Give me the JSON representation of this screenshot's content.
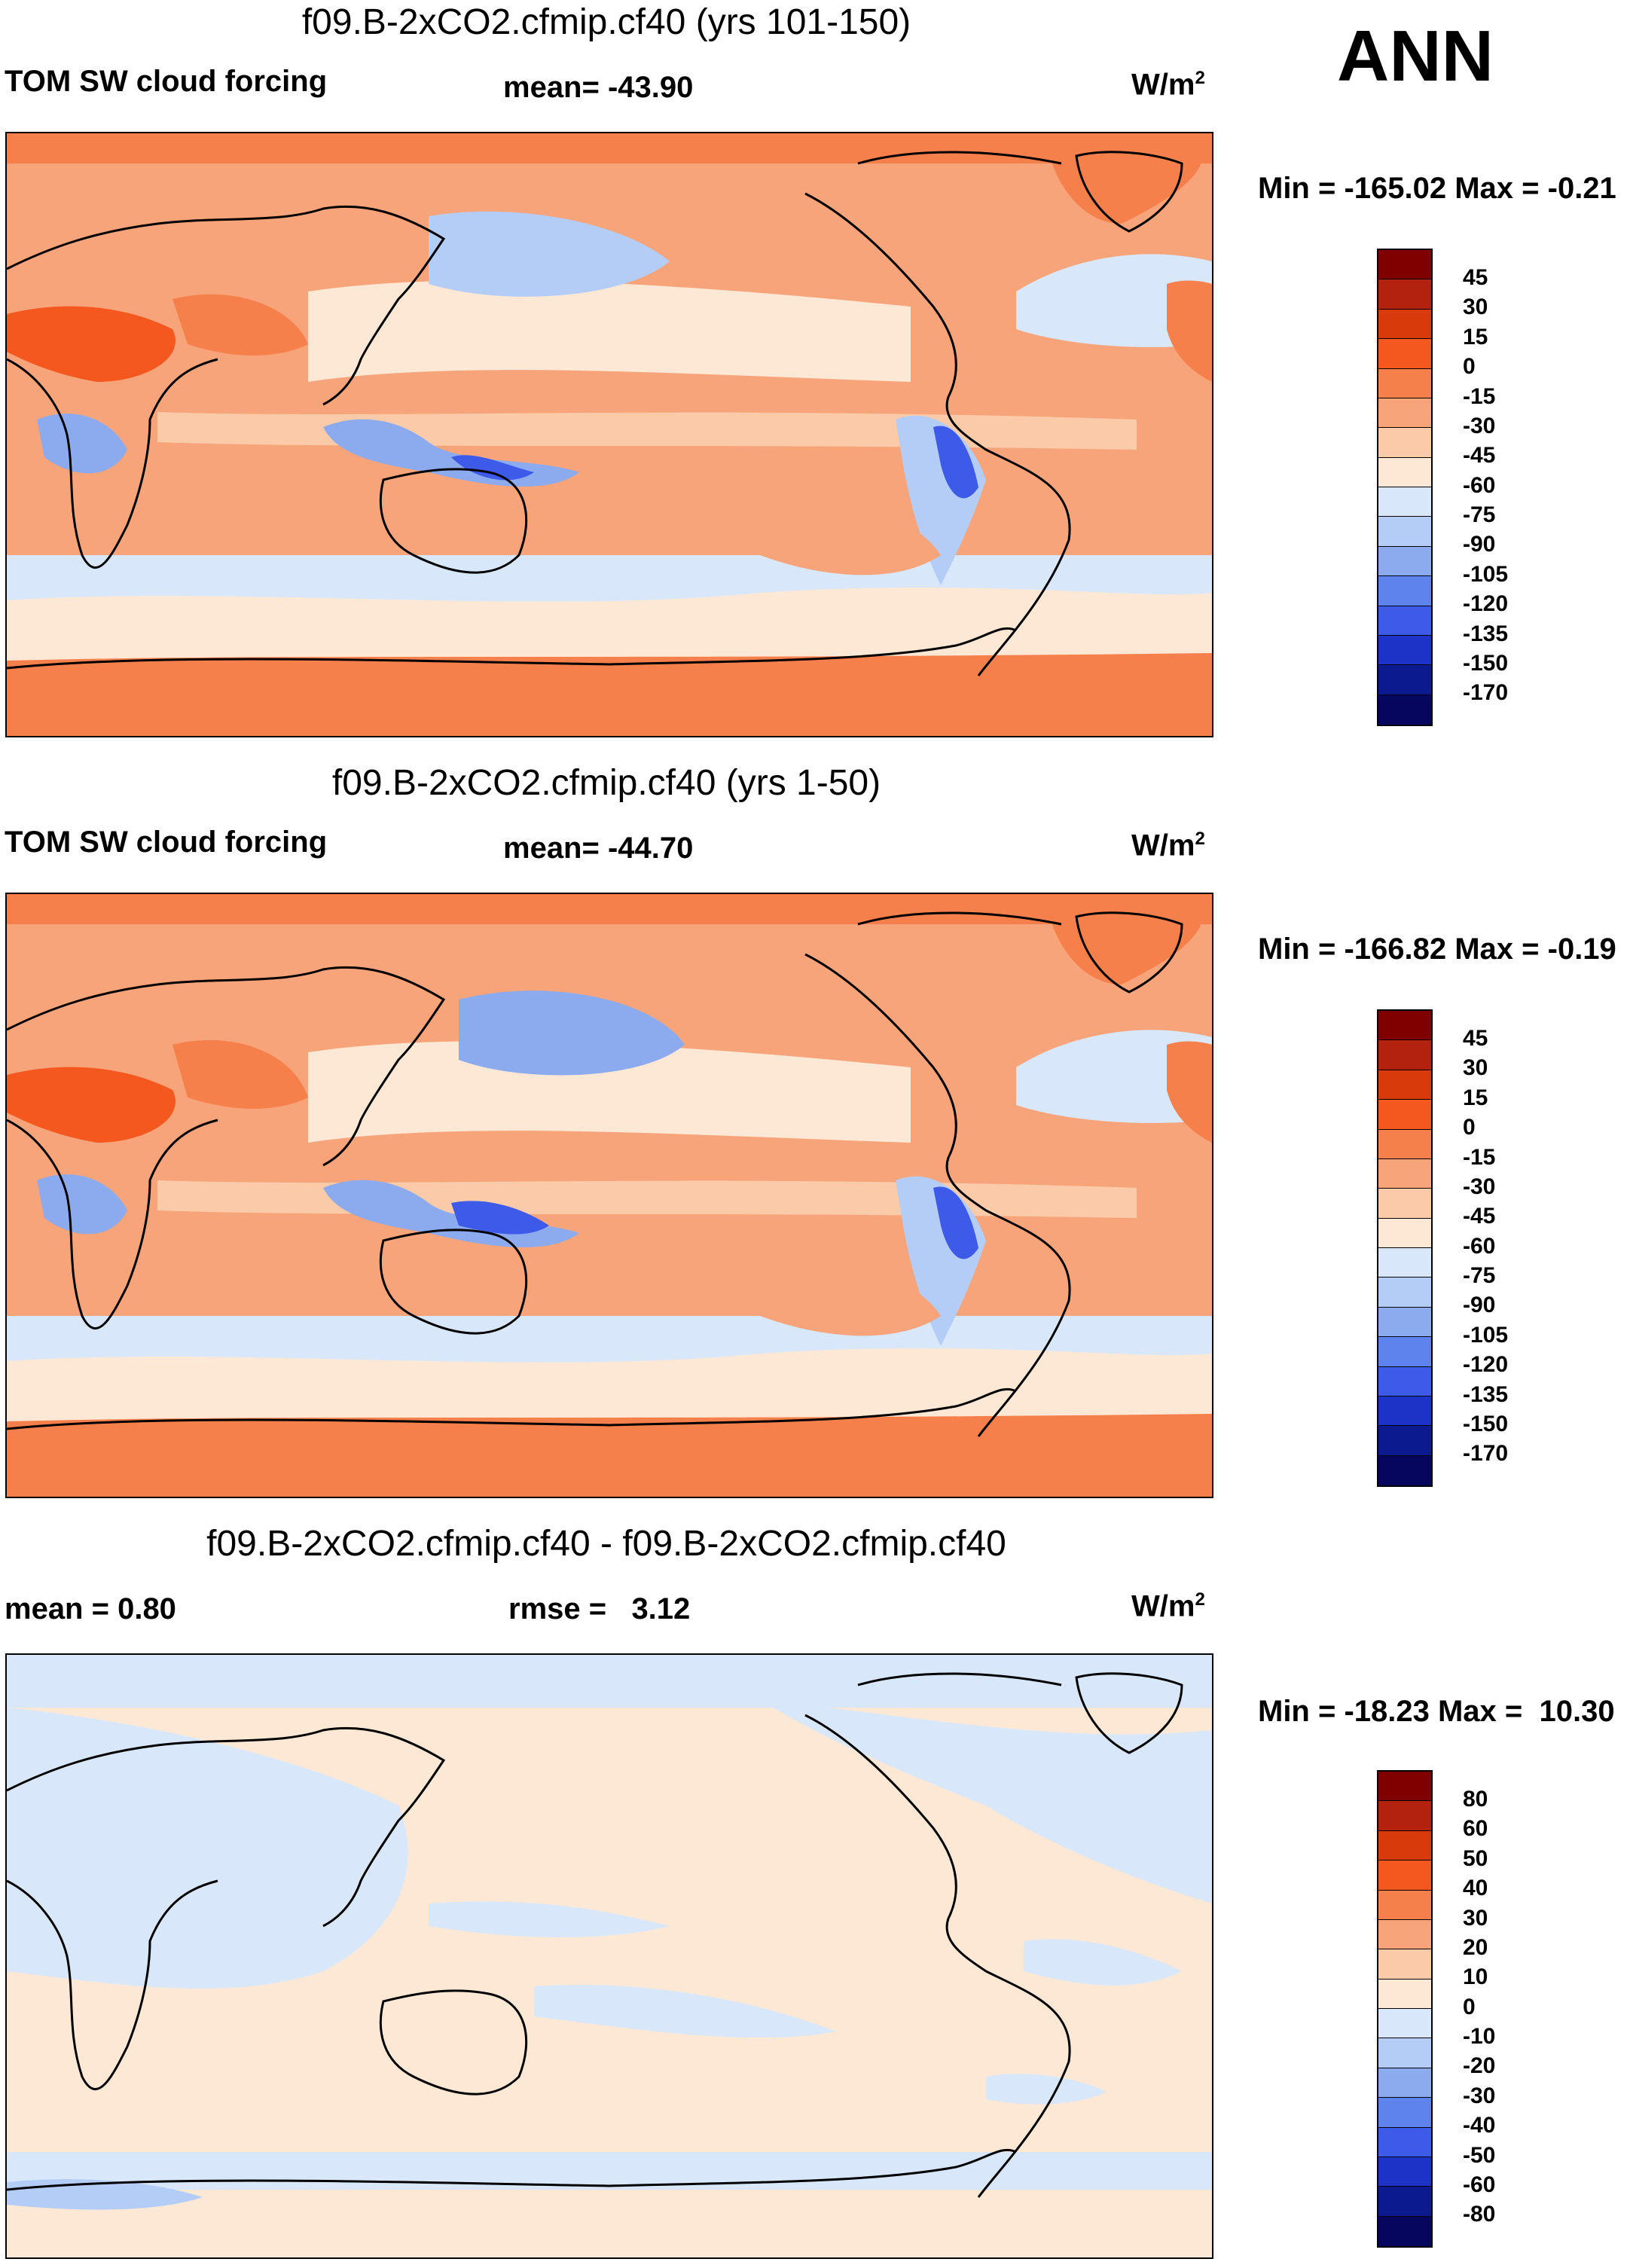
{
  "season": "ANN",
  "panels": [
    {
      "title": "f09.B-2xCO2.cfmip.cf40 (yrs 101-150)",
      "left_label": "TOM SW cloud forcing",
      "mid_label": "mean= -43.90",
      "units_base": "W/m",
      "units_exp": "2",
      "minmax": "Min = -165.02 Max =  -0.21",
      "cbar_labels": [
        "45",
        "30",
        "15",
        "0",
        "-15",
        "-30",
        "-45",
        "-60",
        "-75",
        "-90",
        "-105",
        "-120",
        "-135",
        "-150",
        "-170"
      ]
    },
    {
      "title": "f09.B-2xCO2.cfmip.cf40 (yrs 1-50)",
      "left_label": "TOM SW cloud forcing",
      "mid_label": "mean= -44.70",
      "units_base": "W/m",
      "units_exp": "2",
      "minmax": "Min = -166.82 Max =  -0.19",
      "cbar_labels": [
        "45",
        "30",
        "15",
        "0",
        "-15",
        "-30",
        "-45",
        "-60",
        "-75",
        "-90",
        "-105",
        "-120",
        "-135",
        "-150",
        "-170"
      ]
    },
    {
      "title": "f09.B-2xCO2.cfmip.cf40 - f09.B-2xCO2.cfmip.cf40",
      "left_label": "mean =   0.80",
      "mid_label": "rmse =   3.12",
      "units_base": "W/m",
      "units_exp": "2",
      "minmax": "Min = -18.23 Max =  10.30",
      "cbar_labels": [
        "80",
        "60",
        "50",
        "40",
        "30",
        "20",
        "10",
        "0",
        "-10",
        "-20",
        "-30",
        "-40",
        "-50",
        "-60",
        "-80"
      ]
    }
  ],
  "colors": {
    "scale": [
      "#800000",
      "#b3210f",
      "#d93a0c",
      "#f5581f",
      "#f5804c",
      "#f7a47b",
      "#fbcaa8",
      "#fde8d5",
      "#d8e8fa",
      "#b4cdf7",
      "#8cabef",
      "#5f83ec",
      "#3d5ae8",
      "#1d33c7",
      "#0b1b8f",
      "#06065e"
    ],
    "land": "#000000",
    "frame": "#000000"
  }
}
